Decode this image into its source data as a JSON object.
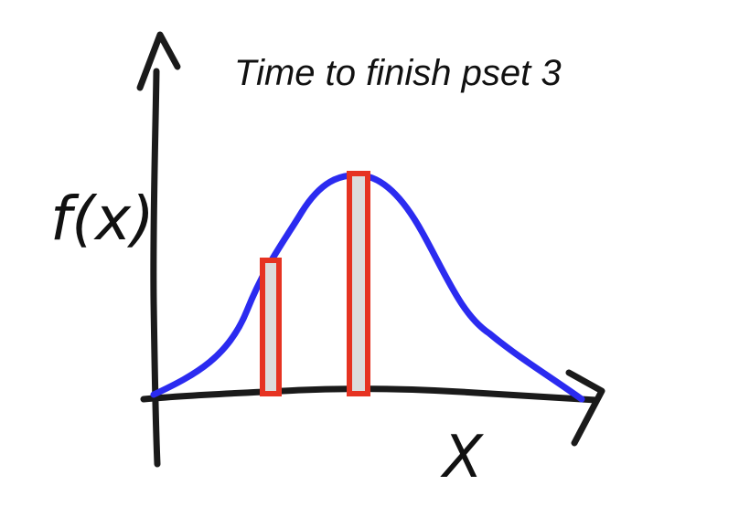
{
  "diagram": {
    "title": "Time to finish pset 3",
    "ylabel": "f(x)",
    "xlabel": "X"
  },
  "colors": {
    "axis": "#1a1a1a",
    "curve": "#2b2bf0",
    "bar_stroke": "#e63322",
    "bar_fill": "#dcdcdc"
  },
  "icons": {
    "y_axis_arrow": "arrow-up-icon",
    "x_axis_arrow": "arrow-right-icon"
  }
}
